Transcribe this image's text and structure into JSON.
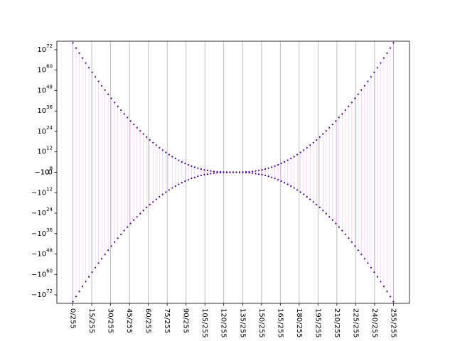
{
  "chart_data": {
    "type": "scatter",
    "title": "",
    "xlabel": "",
    "ylabel": "",
    "x_range": [
      0,
      255
    ],
    "x_tick_labels": [
      "0/255",
      "15/255",
      "30/255",
      "45/255",
      "60/255",
      "75/255",
      "90/255",
      "105/255",
      "120/255",
      "135/255",
      "150/255",
      "165/255",
      "180/255",
      "195/255",
      "210/255",
      "225/255",
      "240/255",
      "255/255"
    ],
    "y_scale": "symlog",
    "y_range_exponent": [
      -77,
      77
    ],
    "y_tick_labels": [
      {
        "exp": 72,
        "text": "10",
        "sup": "72"
      },
      {
        "exp": 60,
        "text": "10",
        "sup": "60"
      },
      {
        "exp": 48,
        "text": "10",
        "sup": "48"
      },
      {
        "exp": 36,
        "text": "10",
        "sup": "36"
      },
      {
        "exp": 24,
        "text": "10",
        "sup": "24"
      },
      {
        "exp": 12,
        "text": "10",
        "sup": "12"
      },
      {
        "exp": 0,
        "text": "10",
        "sup": "0"
      },
      {
        "exp": 0.001,
        "text": "0",
        "sup": ""
      },
      {
        "exp": -0.001,
        "text": "−10",
        "sup": "0"
      },
      {
        "exp": -12,
        "text": "−10",
        "sup": "12"
      },
      {
        "exp": -24,
        "text": "−10",
        "sup": "24"
      },
      {
        "exp": -36,
        "text": "−10",
        "sup": "36"
      },
      {
        "exp": -48,
        "text": "−10",
        "sup": "48"
      },
      {
        "exp": -60,
        "text": "−10",
        "sup": "60"
      },
      {
        "exp": -72,
        "text": "−10",
        "sup": "72"
      }
    ],
    "x_grid": true,
    "series": [
      {
        "marker_color": "#4b0082",
        "line_color": "#ee82ee",
        "description_points": "y = ±10^(76*(1-2k/255)^2) pairs at each k=0..255 step 2.55",
        "x": [
          0,
          2.55,
          5.1,
          7.65,
          10.2,
          12.75,
          15.3,
          17.85,
          20.4,
          22.95,
          25.5,
          28.05,
          30.6,
          33.15,
          35.7,
          38.25,
          40.8,
          43.35,
          45.9,
          48.45,
          51,
          53.55,
          56.1,
          58.65,
          61.2,
          63.75,
          66.3,
          68.85,
          71.4,
          73.95,
          76.5,
          79.05,
          81.6,
          84.15,
          86.7,
          89.25,
          91.8,
          94.35,
          96.9,
          99.45,
          102,
          104.55,
          107.1,
          109.65,
          112.2,
          114.75,
          117.3,
          119.85,
          122.4,
          124.95,
          127.5,
          130.05,
          132.6,
          135.15,
          137.7,
          140.25,
          142.8,
          145.35,
          147.9,
          150.45,
          153,
          155.55,
          158.1,
          160.65,
          163.2,
          165.75,
          168.3,
          170.85,
          173.4,
          175.95,
          178.5,
          181.05,
          183.6,
          186.15,
          188.7,
          191.25,
          193.8,
          196.35,
          198.9,
          201.45,
          204,
          206.55,
          209.1,
          211.65,
          214.2,
          216.75,
          219.3,
          221.85,
          224.4,
          226.95,
          229.5,
          232.05,
          234.6,
          237.15,
          239.7,
          242.25,
          244.8,
          247.35,
          249.9,
          252.45,
          255
        ],
        "y_exponent": [
          76,
          73,
          70,
          67.1,
          64.2,
          61.4,
          58.7,
          56,
          53.4,
          50.8,
          48.3,
          45.8,
          43.4,
          41,
          38.7,
          36.5,
          34.3,
          32.2,
          30.1,
          28.1,
          26.2,
          24.3,
          22.5,
          20.7,
          19,
          17.4,
          15.9,
          14.4,
          13,
          11.7,
          10.4,
          9.2,
          8.1,
          7.1,
          6.1,
          5.2,
          4.4,
          3.6,
          3,
          2.4,
          1.9,
          1.4,
          1.1,
          0.8,
          0.5,
          0.3,
          0.2,
          0.1,
          0.1,
          0,
          0,
          0,
          0.1,
          0.1,
          0.2,
          0.3,
          0.5,
          0.8,
          1.1,
          1.4,
          1.9,
          2.4,
          3,
          3.6,
          4.4,
          5.2,
          6.1,
          7.1,
          8.1,
          9.2,
          10.4,
          11.7,
          13,
          14.4,
          15.9,
          17.4,
          19,
          20.7,
          22.5,
          24.3,
          26.2,
          28.1,
          30.1,
          32.2,
          34.3,
          36.5,
          38.7,
          41,
          43.4,
          45.8,
          48.3,
          50.8,
          53.4,
          56,
          58.7,
          61.4,
          64.2,
          67.1,
          70,
          73,
          76
        ]
      }
    ]
  }
}
